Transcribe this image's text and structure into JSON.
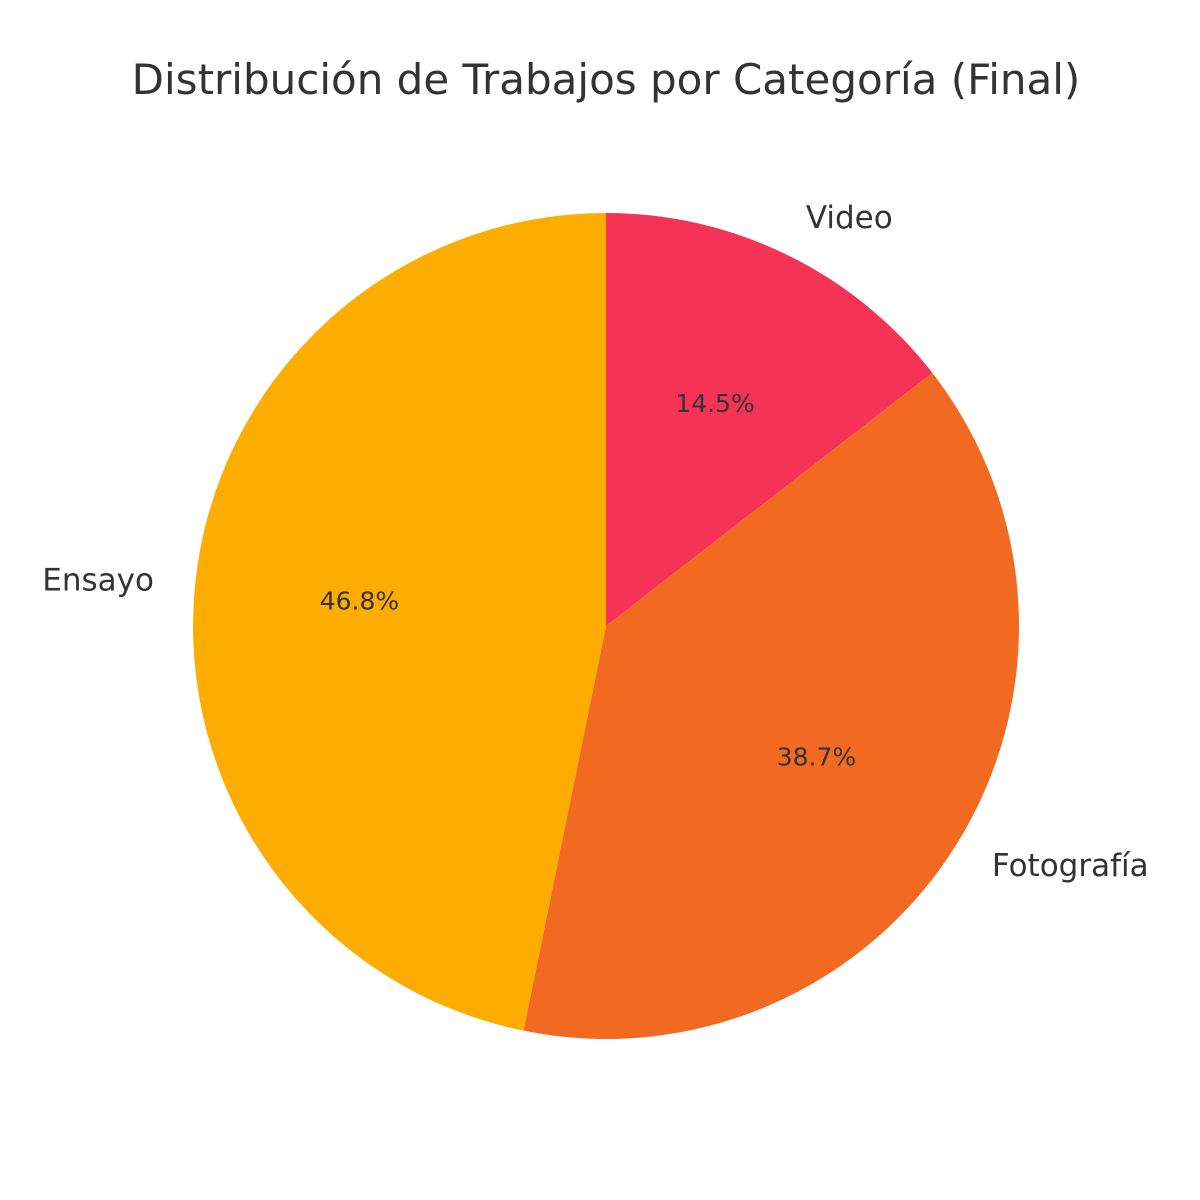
{
  "chart_data": {
    "type": "pie",
    "title": "Distribución de Trabajos por Categoría (Final)",
    "slices": [
      {
        "label": "Video",
        "value": 14.5,
        "display": "14.5%",
        "color": "#F43356"
      },
      {
        "label": "Fotografía",
        "value": 38.7,
        "display": "38.7%",
        "color": "#F26A22"
      },
      {
        "label": "Ensayo",
        "value": 46.8,
        "display": "46.8%",
        "color": "#FDAD02"
      }
    ],
    "start_angle": "top",
    "direction": "clockwise",
    "legend": "none"
  }
}
